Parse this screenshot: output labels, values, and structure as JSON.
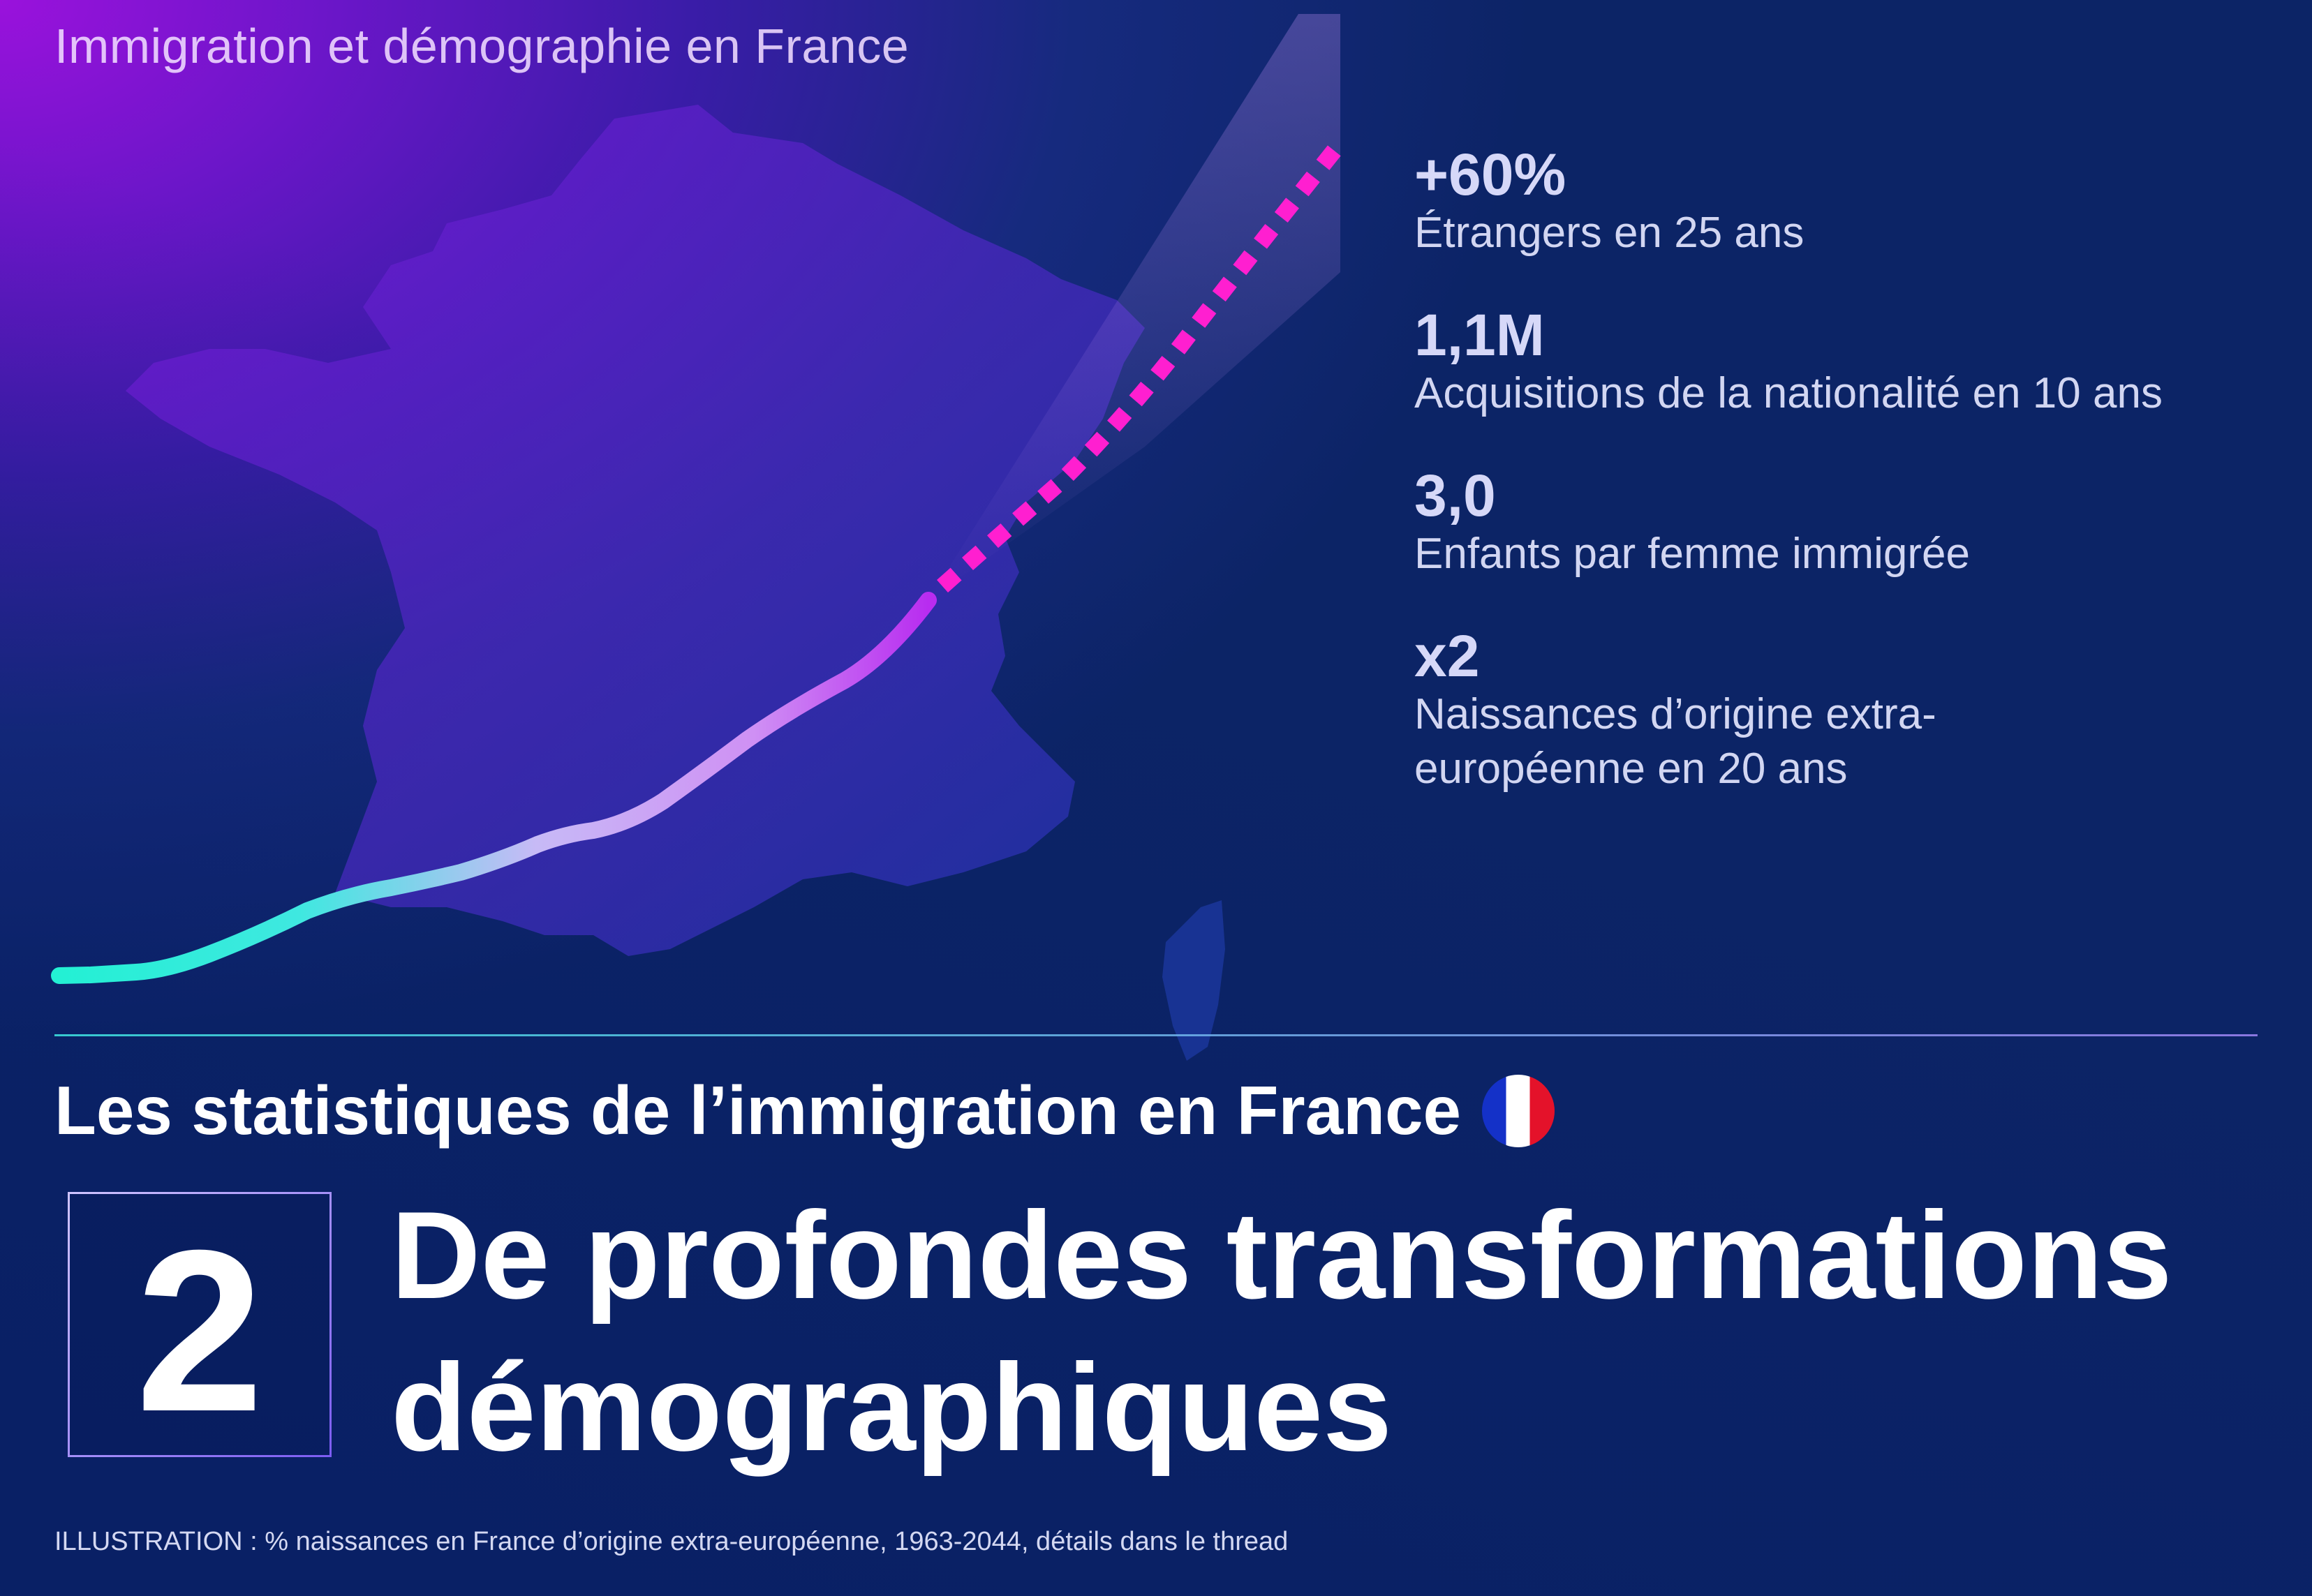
{
  "header": {
    "title": "Immigration et démographie en France"
  },
  "stats": [
    {
      "value": "+60%",
      "label": "Étrangers en 25 ans"
    },
    {
      "value": "1,1M",
      "label": "Acquisitions de la nationalité en 10 ans"
    },
    {
      "value": "3,0",
      "label": "Enfants par femme immigrée"
    },
    {
      "value": "x2",
      "label": "Naissances d’origine extra-européenne en 20 ans"
    }
  ],
  "subtitle": {
    "text": "Les statistiques de l’immigration en France",
    "flag_icon": "france-flag-icon"
  },
  "number_box": {
    "number": "2"
  },
  "main_title": "De profondes transformations démographiques",
  "caption": "ILLUSTRATION : % naissances en France d’origine extra-européenne, 1963-2044, détails dans le thread",
  "colors": {
    "curve_start": "#23f0d4",
    "curve_mid": "#c9b6f4",
    "curve_end": "#c02cf0",
    "projection": "#ff1fd0"
  }
}
